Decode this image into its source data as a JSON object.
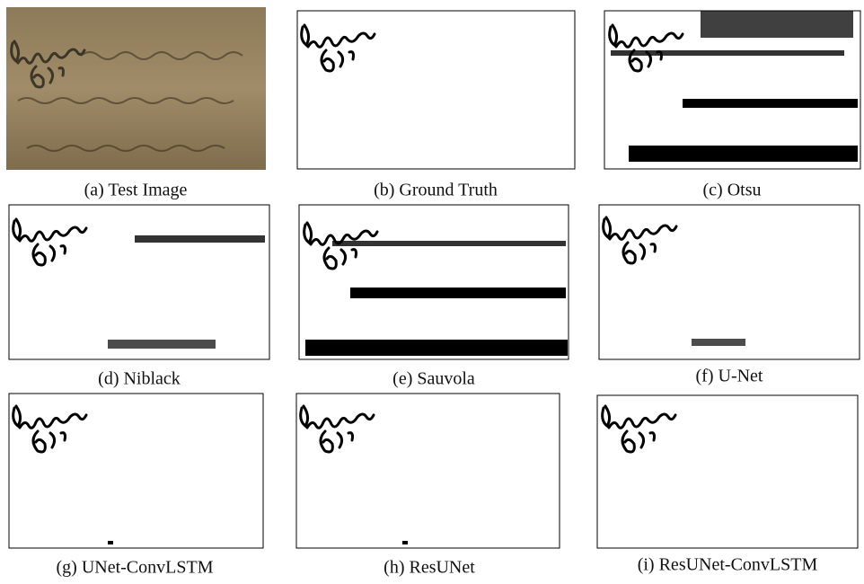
{
  "figure": {
    "panels": [
      {
        "caption": "(a) Test Image"
      },
      {
        "caption": "(b) Ground Truth"
      },
      {
        "caption": "(c) Otsu"
      },
      {
        "caption": "(d) Niblack"
      },
      {
        "caption": "(e) Sauvola"
      },
      {
        "caption": "(f) U-Net"
      },
      {
        "caption": "(g) UNet-ConvLSTM"
      },
      {
        "caption": "(h) ResUNet"
      },
      {
        "caption": "(i) ResUNet-ConvLSTM"
      }
    ]
  }
}
